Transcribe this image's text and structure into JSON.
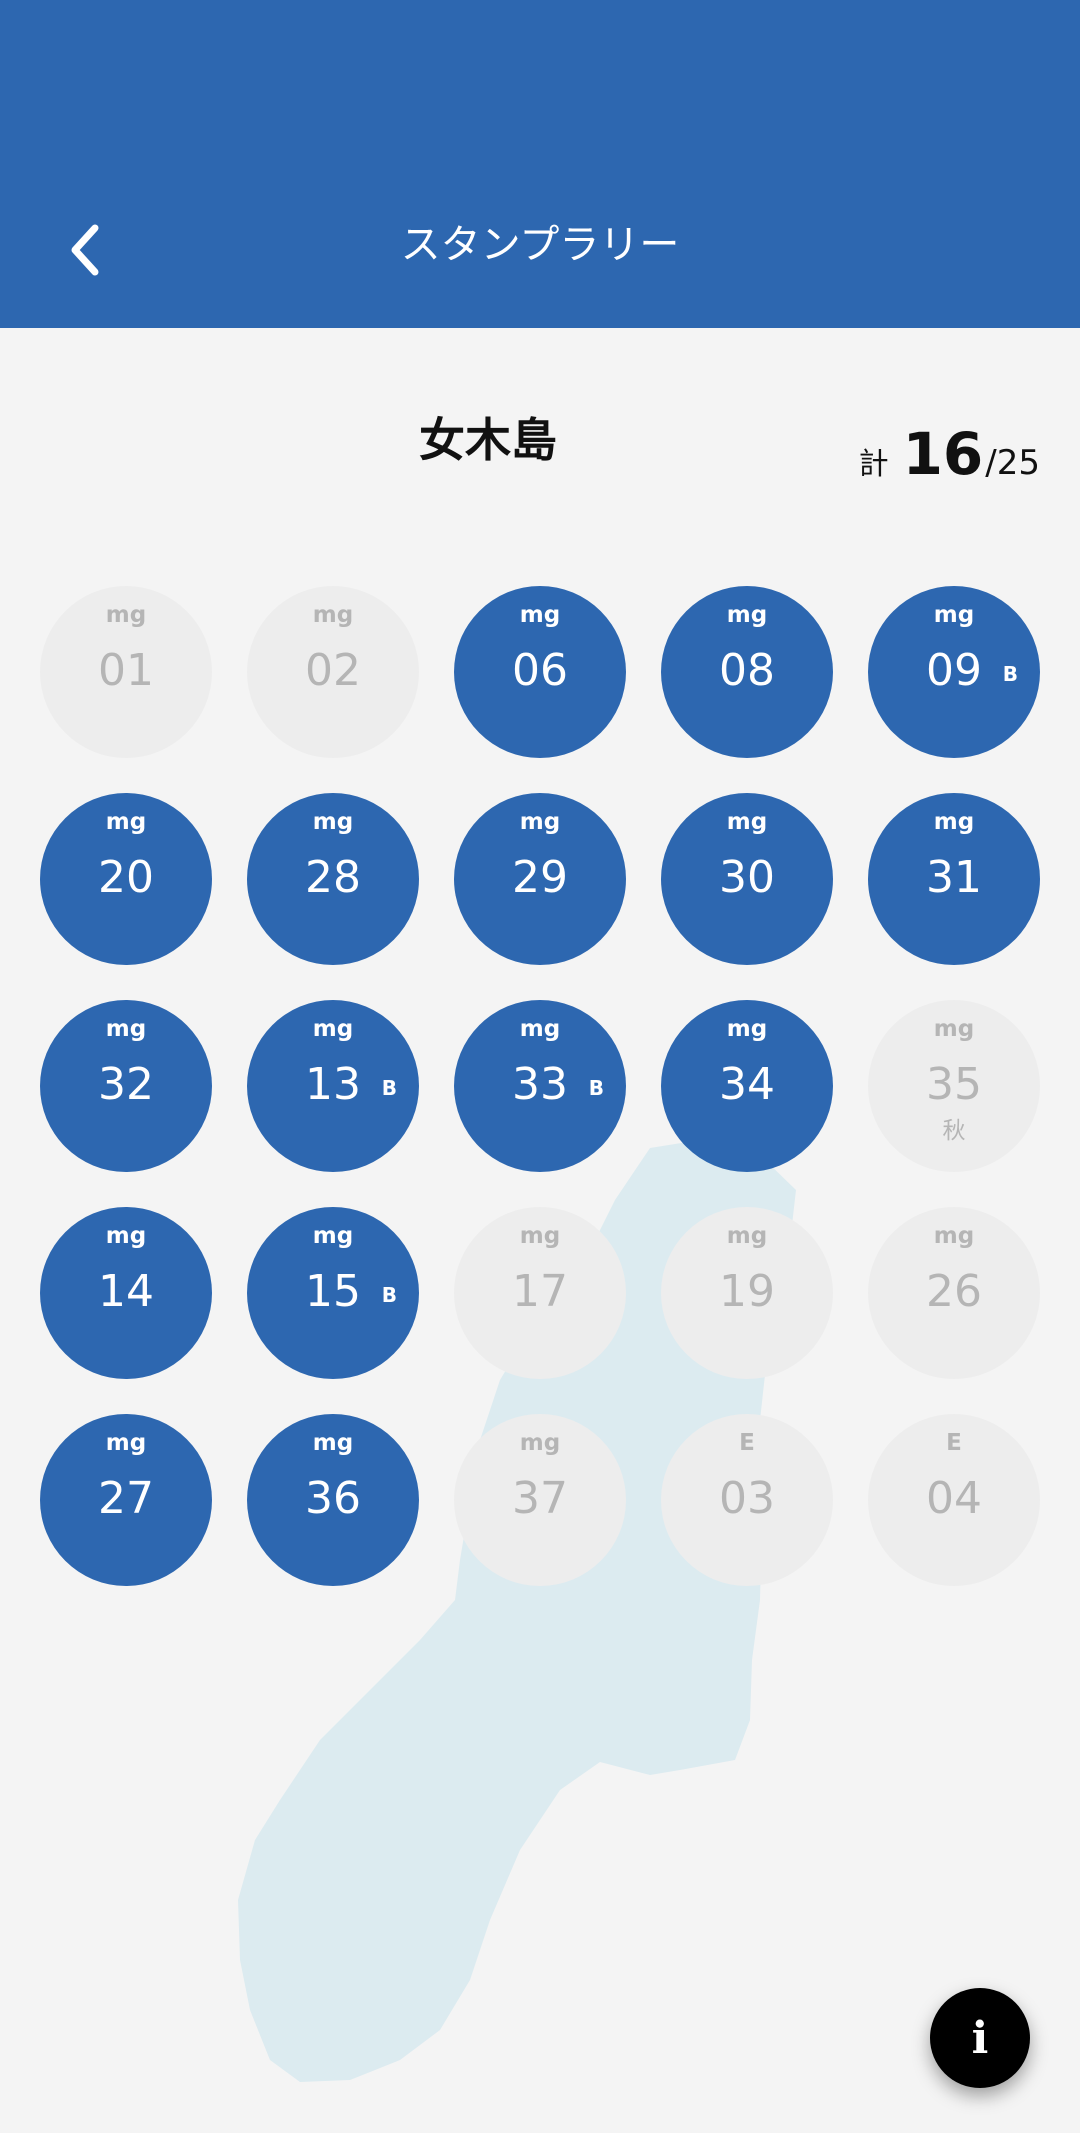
{
  "header": {
    "title": "スタンプラリー",
    "back_icon": "chevron-left-icon"
  },
  "island_name": "女木島",
  "total": {
    "prefix": "計",
    "count": "16",
    "suffix": "/25"
  },
  "stamps": [
    {
      "prefix": "mg",
      "number": "01",
      "badge": "",
      "sub": "",
      "collected": false
    },
    {
      "prefix": "mg",
      "number": "02",
      "badge": "",
      "sub": "",
      "collected": false
    },
    {
      "prefix": "mg",
      "number": "06",
      "badge": "",
      "sub": "",
      "collected": true
    },
    {
      "prefix": "mg",
      "number": "08",
      "badge": "",
      "sub": "",
      "collected": true
    },
    {
      "prefix": "mg",
      "number": "09",
      "badge": "B",
      "sub": "",
      "collected": true
    },
    {
      "prefix": "mg",
      "number": "20",
      "badge": "",
      "sub": "",
      "collected": true
    },
    {
      "prefix": "mg",
      "number": "28",
      "badge": "",
      "sub": "",
      "collected": true
    },
    {
      "prefix": "mg",
      "number": "29",
      "badge": "",
      "sub": "",
      "collected": true
    },
    {
      "prefix": "mg",
      "number": "30",
      "badge": "",
      "sub": "",
      "collected": true
    },
    {
      "prefix": "mg",
      "number": "31",
      "badge": "",
      "sub": "",
      "collected": true
    },
    {
      "prefix": "mg",
      "number": "32",
      "badge": "",
      "sub": "",
      "collected": true
    },
    {
      "prefix": "mg",
      "number": "13",
      "badge": "B",
      "sub": "",
      "collected": true
    },
    {
      "prefix": "mg",
      "number": "33",
      "badge": "B",
      "sub": "",
      "collected": true
    },
    {
      "prefix": "mg",
      "number": "34",
      "badge": "",
      "sub": "",
      "collected": true
    },
    {
      "prefix": "mg",
      "number": "35",
      "badge": "",
      "sub": "秋",
      "collected": false
    },
    {
      "prefix": "mg",
      "number": "14",
      "badge": "",
      "sub": "",
      "collected": true
    },
    {
      "prefix": "mg",
      "number": "15",
      "badge": "B",
      "sub": "",
      "collected": true
    },
    {
      "prefix": "mg",
      "number": "17",
      "badge": "",
      "sub": "",
      "collected": false
    },
    {
      "prefix": "mg",
      "number": "19",
      "badge": "",
      "sub": "",
      "collected": false
    },
    {
      "prefix": "mg",
      "number": "26",
      "badge": "",
      "sub": "",
      "collected": false
    },
    {
      "prefix": "mg",
      "number": "27",
      "badge": "",
      "sub": "",
      "collected": true
    },
    {
      "prefix": "mg",
      "number": "36",
      "badge": "",
      "sub": "",
      "collected": true
    },
    {
      "prefix": "mg",
      "number": "37",
      "badge": "",
      "sub": "",
      "collected": false
    },
    {
      "prefix": "E",
      "number": "03",
      "badge": "",
      "sub": "",
      "collected": false
    },
    {
      "prefix": "E",
      "number": "04",
      "badge": "",
      "sub": "",
      "collected": false
    }
  ],
  "info_button": {
    "label": "i",
    "icon": "info-icon"
  },
  "colors": {
    "primary": "#2d67b0",
    "inactive": "#ededed",
    "map": "#dcebf0"
  }
}
